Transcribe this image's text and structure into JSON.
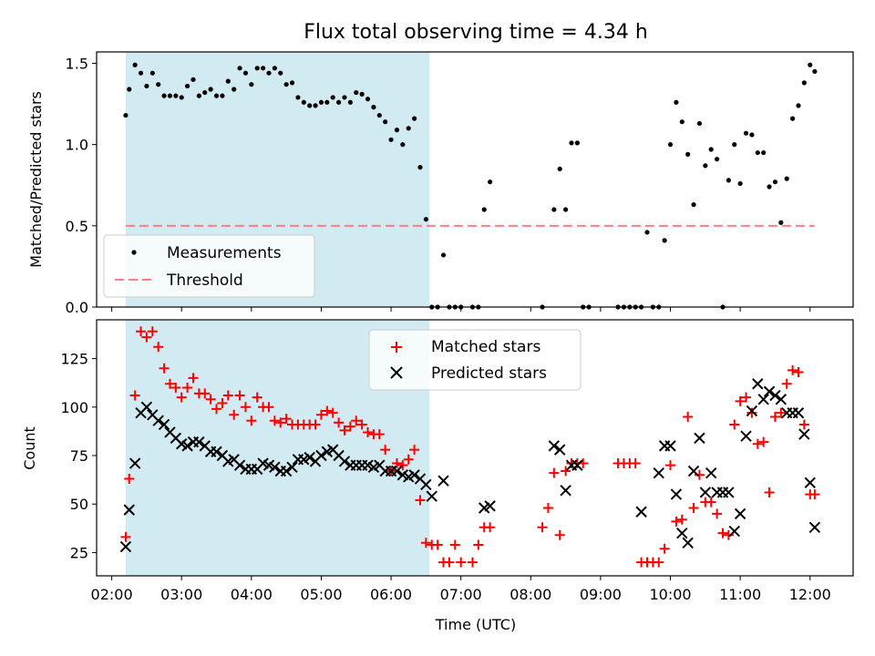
{
  "colors": {
    "background": "#ffffff",
    "shaded_region": "#add8e6",
    "measurement": "#000000",
    "threshold": "#ff7f7f",
    "matched": "#ff0000",
    "predicted": "#000000"
  },
  "chart_data": [
    {
      "type": "scatter",
      "title": "Flux total observing time = 4.34 h",
      "xlabel": "",
      "ylabel": "Matched/Predicted stars",
      "xlim": [
        "01:47",
        "12:37"
      ],
      "ylim": [
        0,
        1.57
      ],
      "yticks": [
        0.0,
        0.5,
        1.0,
        1.5
      ],
      "ytick_labels": [
        "0.0",
        "0.5",
        "1.0",
        "1.5"
      ],
      "grid": false,
      "legend_position": "lower-left",
      "shaded_interval": [
        "02:12",
        "06:33"
      ],
      "threshold": {
        "name": "Threshold",
        "value": 0.5,
        "x_range": [
          "02:12",
          "12:04"
        ],
        "style": "dashed"
      },
      "series": [
        {
          "name": "Measurements",
          "marker": "dot",
          "x": [
            "02:12",
            "02:15",
            "02:20",
            "02:25",
            "02:30",
            "02:35",
            "02:40",
            "02:45",
            "02:50",
            "02:55",
            "03:00",
            "03:05",
            "03:10",
            "03:15",
            "03:20",
            "03:25",
            "03:30",
            "03:35",
            "03:40",
            "03:45",
            "03:50",
            "03:55",
            "04:00",
            "04:05",
            "04:10",
            "04:15",
            "04:20",
            "04:25",
            "04:30",
            "04:35",
            "04:40",
            "04:45",
            "04:50",
            "04:55",
            "05:00",
            "05:05",
            "05:10",
            "05:15",
            "05:20",
            "05:25",
            "05:30",
            "05:35",
            "05:40",
            "05:45",
            "05:50",
            "05:55",
            "06:00",
            "06:05",
            "06:10",
            "06:15",
            "06:20",
            "06:25",
            "06:30",
            "06:35",
            "06:40",
            "06:45",
            "06:50",
            "06:55",
            "07:00",
            "07:10",
            "07:15",
            "07:20",
            "07:25",
            "08:10",
            "08:20",
            "08:25",
            "08:30",
            "08:35",
            "08:40",
            "08:45",
            "08:50",
            "09:15",
            "09:20",
            "09:25",
            "09:30",
            "09:35",
            "09:40",
            "09:45",
            "09:50",
            "09:55",
            "10:00",
            "10:05",
            "10:10",
            "10:15",
            "10:20",
            "10:25",
            "10:30",
            "10:35",
            "10:40",
            "10:45",
            "10:50",
            "10:55",
            "11:00",
            "11:05",
            "11:10",
            "11:15",
            "11:20",
            "11:25",
            "11:30",
            "11:35",
            "11:40",
            "11:45",
            "11:50",
            "11:55",
            "12:00",
            "12:04"
          ],
          "y": [
            1.18,
            1.34,
            1.49,
            1.44,
            1.36,
            1.44,
            1.37,
            1.3,
            1.3,
            1.3,
            1.29,
            1.36,
            1.4,
            1.3,
            1.32,
            1.34,
            1.3,
            1.3,
            1.39,
            1.34,
            1.47,
            1.44,
            1.37,
            1.47,
            1.47,
            1.44,
            1.47,
            1.44,
            1.37,
            1.38,
            1.29,
            1.26,
            1.24,
            1.24,
            1.26,
            1.26,
            1.29,
            1.26,
            1.29,
            1.26,
            1.32,
            1.31,
            1.28,
            1.23,
            1.18,
            1.14,
            1.03,
            1.09,
            1.0,
            1.1,
            1.16,
            0.86,
            0.54,
            0.0,
            0.0,
            0.32,
            0.0,
            0.0,
            0.0,
            0.0,
            0.0,
            0.6,
            0.77,
            0.0,
            0.6,
            0.85,
            0.6,
            1.01,
            1.01,
            0.0,
            0.0,
            0.0,
            0.0,
            0.0,
            0.0,
            0.0,
            0.46,
            0.0,
            0.0,
            0.41,
            1.0,
            1.26,
            1.14,
            0.94,
            0.63,
            1.13,
            0.87,
            0.97,
            0.91,
            0.0,
            0.78,
            1.0,
            0.76,
            1.07,
            1.06,
            0.95,
            0.95,
            0.74,
            0.77,
            0.52,
            0.79,
            1.16,
            1.24,
            1.38,
            1.49,
            1.45
          ]
        }
      ]
    },
    {
      "type": "scatter",
      "title": "",
      "xlabel": "Time (UTC)",
      "ylabel": "Count",
      "xlim": [
        "01:47",
        "12:37"
      ],
      "xticks": [
        "02:00",
        "03:00",
        "04:00",
        "05:00",
        "06:00",
        "07:00",
        "08:00",
        "09:00",
        "10:00",
        "11:00",
        "12:00"
      ],
      "ylim": [
        13,
        145
      ],
      "yticks": [
        25,
        50,
        75,
        100,
        125
      ],
      "ytick_labels": [
        "25",
        "50",
        "75",
        "100",
        "125"
      ],
      "grid": false,
      "legend_position": "top-center",
      "shaded_interval": [
        "02:12",
        "06:33"
      ],
      "series": [
        {
          "name": "Matched stars",
          "marker": "plus",
          "x": [
            "02:12",
            "02:15",
            "02:20",
            "02:25",
            "02:30",
            "02:35",
            "02:40",
            "02:45",
            "02:50",
            "02:55",
            "03:00",
            "03:05",
            "03:10",
            "03:15",
            "03:20",
            "03:25",
            "03:30",
            "03:35",
            "03:40",
            "03:45",
            "03:50",
            "03:55",
            "04:00",
            "04:05",
            "04:10",
            "04:15",
            "04:20",
            "04:25",
            "04:30",
            "04:35",
            "04:40",
            "04:45",
            "04:50",
            "04:55",
            "05:00",
            "05:05",
            "05:10",
            "05:15",
            "05:20",
            "05:25",
            "05:30",
            "05:35",
            "05:40",
            "05:45",
            "05:50",
            "05:55",
            "06:00",
            "06:05",
            "06:10",
            "06:15",
            "06:20",
            "06:25",
            "06:30",
            "06:35",
            "06:40",
            "06:45",
            "06:50",
            "06:55",
            "07:00",
            "07:10",
            "07:15",
            "07:20",
            "07:25",
            "08:10",
            "08:15",
            "08:20",
            "08:25",
            "08:30",
            "08:35",
            "08:40",
            "08:45",
            "09:15",
            "09:20",
            "09:25",
            "09:30",
            "09:35",
            "09:40",
            "09:45",
            "09:50",
            "09:55",
            "10:00",
            "10:05",
            "10:10",
            "10:15",
            "10:20",
            "10:25",
            "10:30",
            "10:35",
            "10:40",
            "10:45",
            "10:50",
            "10:55",
            "11:00",
            "11:05",
            "11:10",
            "11:15",
            "11:20",
            "11:25",
            "11:30",
            "11:35",
            "11:40",
            "11:45",
            "11:50",
            "11:55",
            "12:00",
            "12:04"
          ],
          "y": [
            33,
            63,
            106,
            139,
            136,
            139,
            131,
            120,
            112,
            110,
            105,
            110,
            115,
            107,
            107,
            104,
            99,
            102,
            106,
            96,
            106,
            100,
            93,
            105,
            100,
            100,
            93,
            92,
            94,
            91,
            91,
            91,
            91,
            91,
            96,
            98,
            97,
            92,
            88,
            90,
            93,
            91,
            87,
            86,
            86,
            78,
            67,
            71,
            70,
            73,
            78,
            52,
            30,
            29,
            29,
            20,
            20,
            29,
            20,
            20,
            29,
            38,
            38,
            38,
            48,
            66,
            34,
            67,
            71,
            71,
            71,
            71,
            71,
            71,
            71,
            20,
            20,
            20,
            20,
            27,
            70,
            41,
            42,
            95,
            48,
            65,
            51,
            51,
            45,
            35,
            34,
            91,
            103,
            105,
            97,
            81,
            82,
            56,
            95,
            97,
            112,
            119,
            118,
            91,
            55,
            55
          ]
        },
        {
          "name": "Predicted stars",
          "marker": "x",
          "x": [
            "02:12",
            "02:15",
            "02:20",
            "02:25",
            "02:30",
            "02:35",
            "02:40",
            "02:45",
            "02:50",
            "02:55",
            "03:00",
            "03:05",
            "03:10",
            "03:15",
            "03:20",
            "03:25",
            "03:30",
            "03:35",
            "03:40",
            "03:45",
            "03:50",
            "03:55",
            "04:00",
            "04:05",
            "04:10",
            "04:15",
            "04:20",
            "04:25",
            "04:30",
            "04:35",
            "04:40",
            "04:45",
            "04:50",
            "04:55",
            "05:00",
            "05:05",
            "05:10",
            "05:15",
            "05:20",
            "05:25",
            "05:30",
            "05:35",
            "05:40",
            "05:45",
            "05:50",
            "05:55",
            "06:00",
            "06:05",
            "06:10",
            "06:15",
            "06:20",
            "06:25",
            "06:30",
            "06:35",
            "06:45",
            "07:20",
            "07:25",
            "08:20",
            "08:25",
            "08:30",
            "08:35",
            "08:40",
            "09:35",
            "09:50",
            "09:55",
            "10:00",
            "10:05",
            "10:10",
            "10:15",
            "10:20",
            "10:25",
            "10:30",
            "10:35",
            "10:40",
            "10:45",
            "10:50",
            "10:55",
            "11:00",
            "11:05",
            "11:10",
            "11:15",
            "11:20",
            "11:25",
            "11:30",
            "11:35",
            "11:40",
            "11:45",
            "11:50",
            "11:55",
            "12:00",
            "12:04"
          ],
          "y": [
            28,
            47,
            71,
            97,
            100,
            96,
            93,
            91,
            87,
            84,
            81,
            80,
            82,
            82,
            80,
            77,
            77,
            75,
            72,
            73,
            70,
            68,
            68,
            68,
            71,
            70,
            69,
            67,
            67,
            69,
            73,
            73,
            74,
            72,
            75,
            77,
            78,
            75,
            72,
            70,
            70,
            70,
            70,
            69,
            70,
            67,
            67,
            67,
            65,
            64,
            65,
            63,
            60,
            54,
            62,
            48,
            49,
            80,
            78,
            57,
            70,
            70,
            46,
            66,
            80,
            80,
            55,
            35,
            30,
            67,
            84,
            56,
            66,
            56,
            56,
            56,
            36,
            45,
            85,
            98,
            112,
            104,
            108,
            106,
            104,
            97,
            97,
            97,
            86,
            61,
            38
          ]
        }
      ]
    }
  ],
  "legend": {
    "top": [
      {
        "label": "Measurements",
        "marker": "dot"
      },
      {
        "label": "Threshold",
        "marker": "dashed-line"
      }
    ],
    "bottom": [
      {
        "label": "Matched stars",
        "marker": "plus"
      },
      {
        "label": "Predicted stars",
        "marker": "x"
      }
    ]
  }
}
